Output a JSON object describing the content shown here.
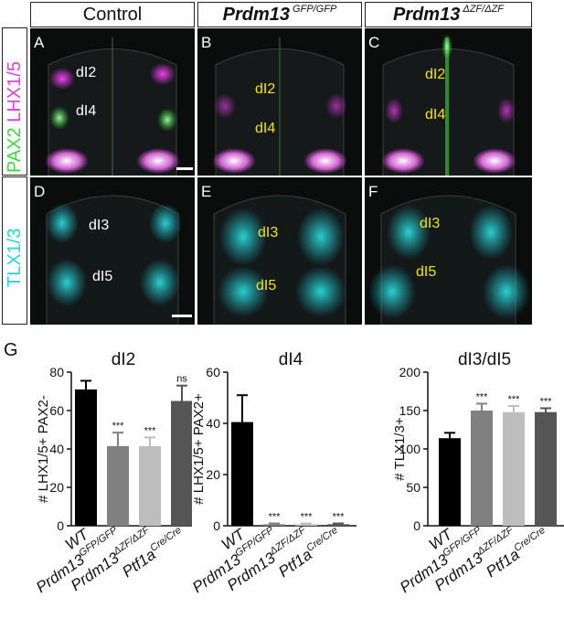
{
  "headers": [
    {
      "text": "Control",
      "sup": ""
    },
    {
      "text": "Prdm13",
      "sup": "GFP/GFP"
    },
    {
      "text": "Prdm13",
      "sup": "ΔZF/ΔZF"
    }
  ],
  "row_labels": {
    "row1_part1": "PAX2",
    "row1_part2": "LHX1/5",
    "row2": "TLX1/3",
    "row1_colors": {
      "pax2": "#33dd33",
      "lhx": "#e040e0"
    },
    "row2_color": "#20d8e0"
  },
  "panels": [
    {
      "letter": "A",
      "regions": [
        "dI2",
        "dI4"
      ]
    },
    {
      "letter": "B",
      "regions": [
        "dI2",
        "dI4"
      ]
    },
    {
      "letter": "C",
      "regions": [
        "dI2",
        "dI4"
      ]
    },
    {
      "letter": "D",
      "regions": [
        "dI3",
        "dI5"
      ]
    },
    {
      "letter": "E",
      "regions": [
        "dI3",
        "dI5"
      ]
    },
    {
      "letter": "F",
      "regions": [
        "dI3",
        "dI5"
      ]
    }
  ],
  "section_label": "G",
  "chart_data": [
    {
      "type": "bar",
      "title": "dI2",
      "ylabel": "# LHX1/5+ PAX2-",
      "ylim": [
        0,
        80
      ],
      "yticks": [
        0,
        20,
        40,
        60,
        80
      ],
      "categories": [
        "WT",
        "Prdm13",
        "Prdm13",
        "Ptf1a"
      ],
      "category_sups": [
        "",
        "GFP/GFP",
        "ΔZF/ΔZF",
        "Cre/Cre"
      ],
      "values": [
        71,
        41.5,
        41.5,
        65
      ],
      "errors": [
        4.5,
        7,
        4.5,
        8
      ],
      "significance": [
        "",
        "***",
        "***",
        "ns"
      ],
      "colors": [
        "#000000",
        "#808080",
        "#bdbdbd",
        "#555555"
      ]
    },
    {
      "type": "bar",
      "title": "dI4",
      "ylabel": "# LHX1/5+ PAX2+",
      "ylim": [
        0,
        60
      ],
      "yticks": [
        0,
        20,
        40,
        60
      ],
      "categories": [
        "WT",
        "Prdm13",
        "Prdm13",
        "Ptf1a"
      ],
      "category_sups": [
        "",
        "GFP/GFP",
        "ΔZF/ΔZF",
        "Cre/Cre"
      ],
      "values": [
        40.5,
        0.6,
        0.6,
        0.6
      ],
      "errors": [
        10.5,
        0.3,
        0.3,
        0.3
      ],
      "significance": [
        "",
        "***",
        "***",
        "***"
      ],
      "colors": [
        "#000000",
        "#808080",
        "#bdbdbd",
        "#555555"
      ]
    },
    {
      "type": "bar",
      "title": "dI3/dI5",
      "ylabel": "# TLX1/3+",
      "ylim": [
        0,
        200
      ],
      "yticks": [
        0,
        50,
        100,
        150,
        200
      ],
      "categories": [
        "WT",
        "Prdm13",
        "Prdm13",
        "Ptf1a"
      ],
      "category_sups": [
        "",
        "GFP/GFP",
        "ΔZF/ΔZF",
        "Cre/Cre"
      ],
      "values": [
        114,
        150,
        148,
        148
      ],
      "errors": [
        7,
        9,
        8,
        5
      ],
      "significance": [
        "",
        "***",
        "***",
        "***"
      ],
      "colors": [
        "#000000",
        "#808080",
        "#bdbdbd",
        "#555555"
      ]
    }
  ]
}
